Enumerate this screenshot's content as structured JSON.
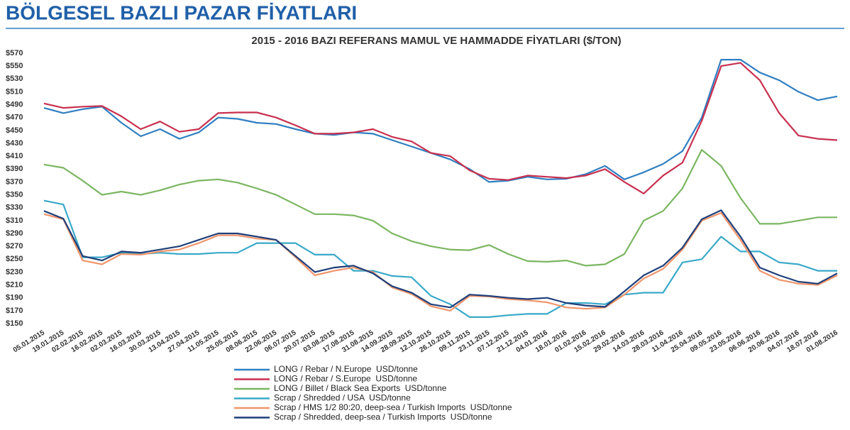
{
  "header": {
    "title": "BÖLGESEL BAZLI PAZAR FİYATLARI"
  },
  "chart_data": {
    "type": "line",
    "title": "2015 - 2016 BAZI REFERANS MAMUL VE HAMMADDE FİYATLARI ($/TON)",
    "categories": [
      "05.01.2015",
      "19.01.2015",
      "02.02.2015",
      "16.02.2015",
      "02.03.2015",
      "16.03.2015",
      "30.03.2015",
      "13.04.2015",
      "27.04.2015",
      "11.05.2015",
      "25.05.2015",
      "08.06.2015",
      "22.06.2015",
      "06.07.2015",
      "20.07.2015",
      "03.08.2015",
      "17.08.2015",
      "31.08.2015",
      "14.09.2015",
      "28.09.2015",
      "12.10.2015",
      "26.10.2015",
      "09.11.2015",
      "23.11.2015",
      "07.12.2015",
      "21.12.2015",
      "04.01.2016",
      "18.01.2016",
      "01.02.2016",
      "15.02.2016",
      "29.02.2016",
      "14.03.2016",
      "28.03.2016",
      "11.04.2016",
      "25.04.2016",
      "09.05.2016",
      "23.05.2016",
      "06.06.2016",
      "20.06.2016",
      "04.07.2016",
      "18.07.2016",
      "01.08.2016"
    ],
    "series": [
      {
        "name": "LONG / Rebar / N.Europe  USD/tonne",
        "color": "#2f7fc1",
        "values": [
          485,
          477,
          483,
          487,
          462,
          441,
          452,
          437,
          447,
          470,
          468,
          462,
          460,
          452,
          445,
          443,
          447,
          445,
          435,
          425,
          415,
          405,
          390,
          370,
          372,
          378,
          374,
          375,
          382,
          395,
          374,
          385,
          398,
          418,
          470,
          560,
          560,
          540,
          528,
          510,
          497,
          503
        ]
      },
      {
        "name": "LONG / Rebar / S.Europe  USD/tonne",
        "color": "#c8304f",
        "values": [
          492,
          485,
          487,
          488,
          472,
          452,
          464,
          448,
          452,
          477,
          478,
          478,
          470,
          458,
          445,
          445,
          447,
          452,
          440,
          433,
          415,
          410,
          388,
          375,
          373,
          380,
          378,
          376,
          380,
          390,
          370,
          352,
          380,
          400,
          465,
          550,
          555,
          528,
          477,
          442,
          437,
          435
        ]
      },
      {
        "name": "LONG / Billet / Black Sea Exports  USD/tonne",
        "color": "#7bb661",
        "values": [
          397,
          392,
          372,
          350,
          355,
          350,
          357,
          366,
          372,
          374,
          369,
          360,
          350,
          335,
          320,
          320,
          318,
          310,
          290,
          278,
          270,
          265,
          264,
          272,
          258,
          247,
          246,
          248,
          240,
          242,
          258,
          310,
          325,
          360,
          420,
          395,
          345,
          305,
          305,
          310,
          315,
          315
        ]
      },
      {
        "name": "Scrap / Shredded / USA  USD/tonne",
        "color": "#3aa9c9",
        "values": [
          341,
          335,
          253,
          253,
          260,
          258,
          260,
          258,
          258,
          260,
          260,
          275,
          275,
          275,
          257,
          257,
          232,
          232,
          224,
          222,
          193,
          180,
          160,
          160,
          163,
          165,
          165,
          182,
          182,
          180,
          195,
          198,
          198,
          245,
          250,
          285,
          262,
          262,
          245,
          242,
          232,
          232
        ]
      },
      {
        "name": "Scrap / HMS 1/2 80:20, deep-sea / Turkish Imports  USD/tonne",
        "color": "#f0956b",
        "values": [
          320,
          312,
          248,
          242,
          258,
          257,
          262,
          265,
          275,
          287,
          287,
          282,
          280,
          253,
          225,
          232,
          237,
          230,
          206,
          196,
          177,
          170,
          193,
          192,
          188,
          186,
          183,
          175,
          173,
          175,
          195,
          220,
          235,
          265,
          310,
          322,
          280,
          232,
          218,
          212,
          210,
          225
        ]
      },
      {
        "name": "Scrap / Shredded, deep-sea / Turkish Imports  USD/tonne",
        "color": "#1f3f7a",
        "values": [
          325,
          313,
          255,
          248,
          262,
          260,
          265,
          270,
          280,
          290,
          290,
          285,
          280,
          255,
          230,
          237,
          240,
          228,
          208,
          198,
          180,
          175,
          195,
          193,
          190,
          188,
          190,
          182,
          178,
          176,
          200,
          225,
          240,
          268,
          312,
          326,
          285,
          237,
          225,
          215,
          212,
          228
        ]
      }
    ],
    "ylim": [
      150,
      570
    ],
    "yticks": [
      {
        "value": 150,
        "label": "$150"
      },
      {
        "value": 170,
        "label": "$170"
      },
      {
        "value": 190,
        "label": "$190"
      },
      {
        "value": 210,
        "label": "$210"
      },
      {
        "value": 230,
        "label": "$230"
      },
      {
        "value": 250,
        "label": "$250"
      },
      {
        "value": 270,
        "label": "$270"
      },
      {
        "value": 290,
        "label": "$290"
      },
      {
        "value": 310,
        "label": "$310"
      },
      {
        "value": 330,
        "label": "$330"
      },
      {
        "value": 350,
        "label": "$350"
      },
      {
        "value": 370,
        "label": "$370"
      },
      {
        "value": 390,
        "label": "$390"
      },
      {
        "value": 410,
        "label": "$410"
      },
      {
        "value": 430,
        "label": "$430"
      },
      {
        "value": 450,
        "label": "$450"
      },
      {
        "value": 470,
        "label": "$470"
      },
      {
        "value": 490,
        "label": "$490"
      },
      {
        "value": 510,
        "label": "$510"
      },
      {
        "value": 530,
        "label": "$530"
      },
      {
        "value": 550,
        "label": "$550"
      },
      {
        "value": 570,
        "label": "$570"
      }
    ],
    "grid": false
  }
}
